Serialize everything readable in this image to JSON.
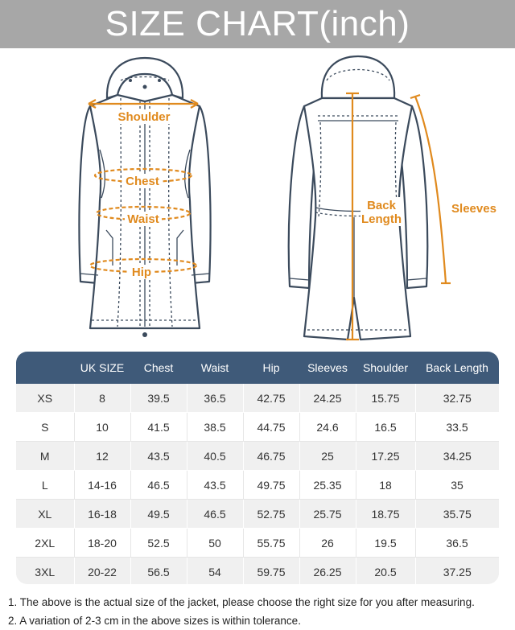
{
  "banner": {
    "title": "SIZE CHART(inch)"
  },
  "illustration": {
    "labels": {
      "shoulder": "Shoulder",
      "chest": "Chest",
      "waist": "Waist",
      "hip": "Hip",
      "back_line1": "Back",
      "back_line2": "Length",
      "sleeves": "Sleeves"
    },
    "accent_color": "#e08a1e",
    "line_color": "#3b4a5c"
  },
  "table": {
    "headers": [
      "",
      "UK SIZE",
      "Chest",
      "Waist",
      "Hip",
      "Sleeves",
      "Shoulder",
      "Back Length"
    ],
    "rows": [
      [
        "XS",
        "8",
        "39.5",
        "36.5",
        "42.75",
        "24.25",
        "15.75",
        "32.75"
      ],
      [
        "S",
        "10",
        "41.5",
        "38.5",
        "44.75",
        "24.6",
        "16.5",
        "33.5"
      ],
      [
        "M",
        "12",
        "43.5",
        "40.5",
        "46.75",
        "25",
        "17.25",
        "34.25"
      ],
      [
        "L",
        "14-16",
        "46.5",
        "43.5",
        "49.75",
        "25.35",
        "18",
        "35"
      ],
      [
        "XL",
        "16-18",
        "49.5",
        "46.5",
        "52.75",
        "25.75",
        "18.75",
        "35.75"
      ],
      [
        "2XL",
        "18-20",
        "52.5",
        "50",
        "55.75",
        "26",
        "19.5",
        "36.5"
      ],
      [
        "3XL",
        "20-22",
        "56.5",
        "54",
        "59.75",
        "26.25",
        "20.5",
        "37.25"
      ]
    ],
    "header_color": "#3f5a79"
  },
  "notes": [
    "1. The above is the actual size of the jacket, please choose the right size for you after measuring.",
    "2. A variation of 2-3 cm in the above sizes is within tolerance."
  ]
}
